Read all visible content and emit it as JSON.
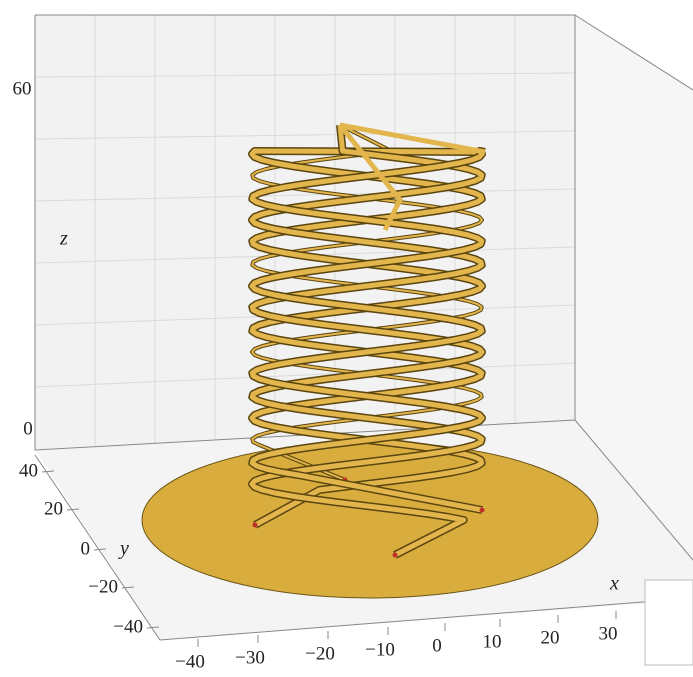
{
  "axes": {
    "x": {
      "label": "x",
      "ticks": [
        "−40",
        "−30",
        "−20",
        "−10",
        "0",
        "10",
        "20",
        "30"
      ]
    },
    "y": {
      "label": "y",
      "ticks": [
        "40",
        "20",
        "0",
        "−20",
        "−40"
      ]
    },
    "z": {
      "label": "z",
      "ticks": [
        "60",
        "0"
      ]
    }
  }
}
